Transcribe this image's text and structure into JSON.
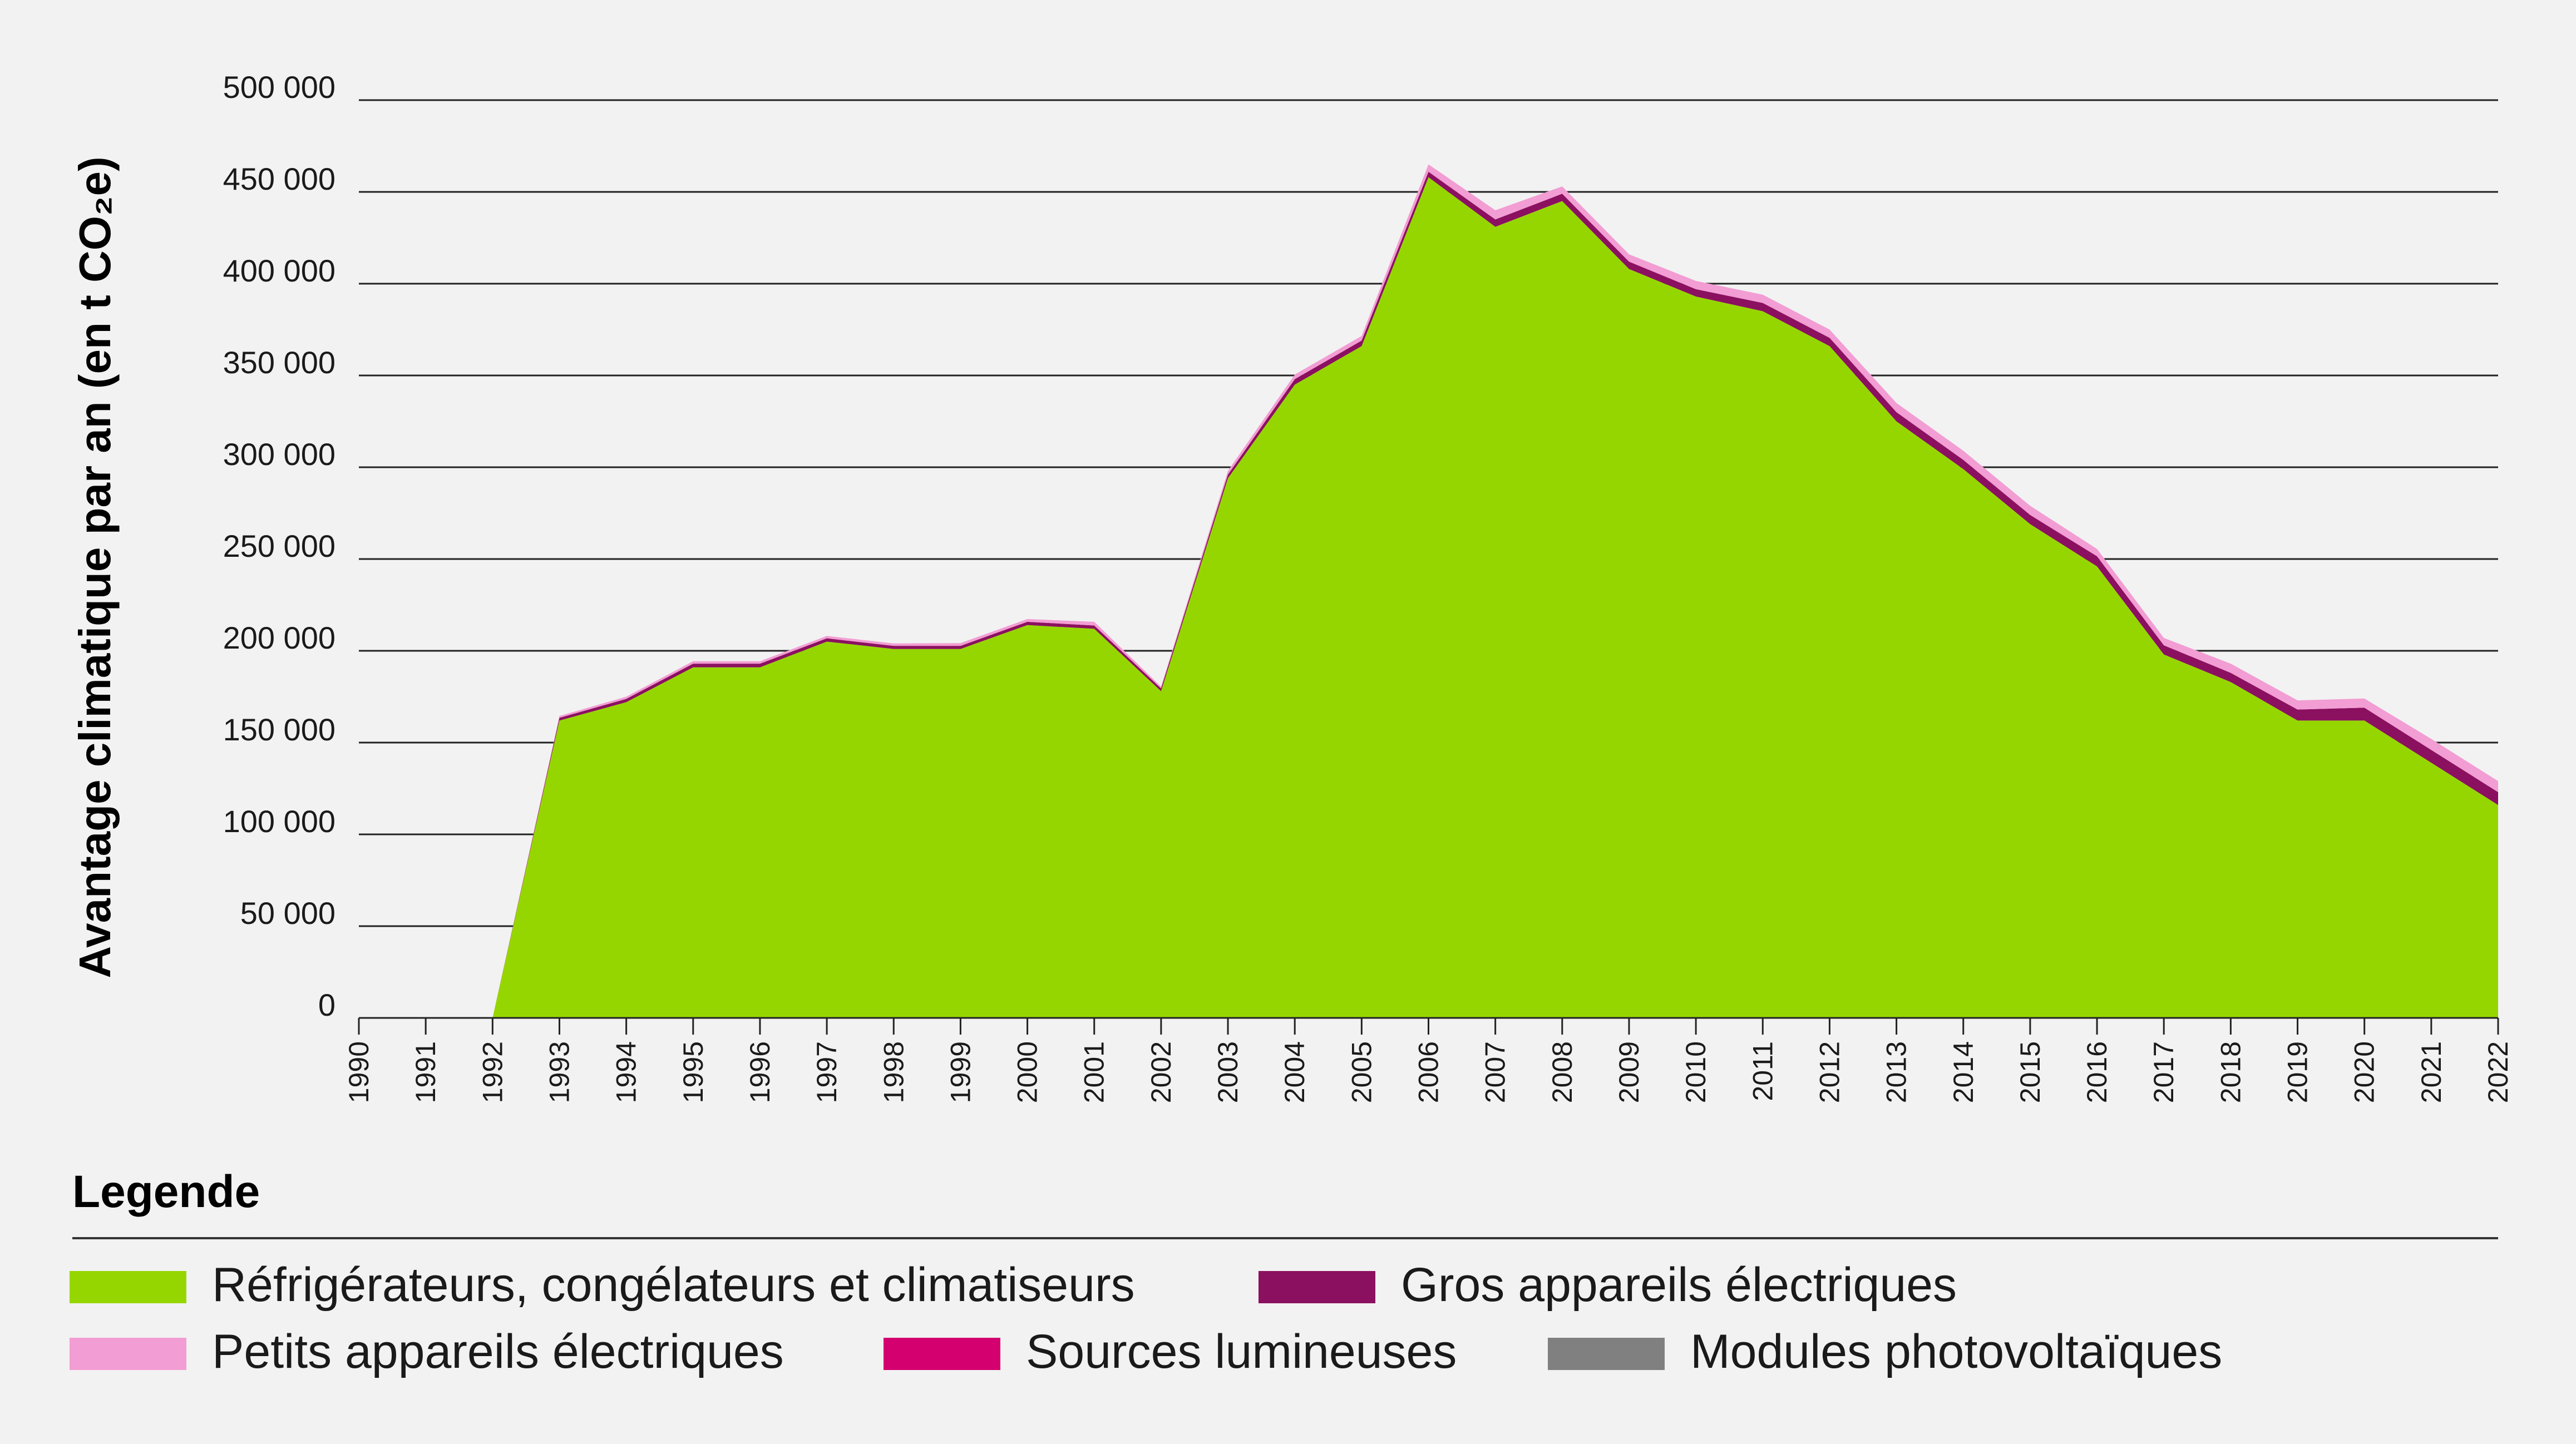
{
  "chart_data": {
    "type": "area",
    "title": "",
    "ylabel": "Avantage climatique par an (en t CO₂e)",
    "ylim": [
      0,
      500000
    ],
    "yticks": [
      {
        "value": 0,
        "label": "0"
      },
      {
        "value": 50000,
        "label": "50 000"
      },
      {
        "value": 100000,
        "label": "100 000"
      },
      {
        "value": 150000,
        "label": "150 000"
      },
      {
        "value": 200000,
        "label": "200 000"
      },
      {
        "value": 250000,
        "label": "250 000"
      },
      {
        "value": 300000,
        "label": "300 000"
      },
      {
        "value": 350000,
        "label": "350 000"
      },
      {
        "value": 400000,
        "label": "400 000"
      },
      {
        "value": 450000,
        "label": "450 000"
      },
      {
        "value": 500000,
        "label": "500 000"
      }
    ],
    "x": [
      "1990",
      "1991",
      "1992",
      "1993",
      "1994",
      "1995",
      "1996",
      "1997",
      "1998",
      "1999",
      "2000",
      "2001",
      "2002",
      "2003",
      "2004",
      "2005",
      "2006",
      "2007",
      "2008",
      "2009",
      "2010",
      "2011",
      "2012",
      "2013",
      "2014",
      "2015",
      "2016",
      "2017",
      "2018",
      "2019",
      "2020",
      "2021",
      "2022"
    ],
    "stacked": true,
    "grid": true,
    "legend_title": "Legende",
    "legend_placement": "bottom",
    "series": [
      {
        "name": "Réfrigérateurs, congélateurs et climatiseurs",
        "color": "#96d600",
        "values": [
          0,
          0,
          0,
          162000,
          172000,
          191000,
          191000,
          205000,
          201000,
          201000,
          214000,
          212000,
          178000,
          294000,
          345000,
          366000,
          458000,
          431000,
          445000,
          408000,
          393000,
          385000,
          366000,
          325000,
          299000,
          269000,
          246000,
          198000,
          183000,
          162000,
          162000,
          139000,
          116000
        ]
      },
      {
        "name": "Gros appareils électriques",
        "color": "#8b1060",
        "values": [
          0,
          0,
          0,
          1500,
          1800,
          2000,
          2000,
          1800,
          1700,
          1700,
          1800,
          1800,
          1500,
          2000,
          3000,
          3000,
          3000,
          4000,
          4000,
          4000,
          4000,
          4500,
          4500,
          5000,
          5000,
          5000,
          5500,
          5000,
          5000,
          6000,
          7000,
          7000,
          7000
        ]
      },
      {
        "name": "Petits appareils électriques",
        "color": "#f29dd3",
        "values": [
          0,
          0,
          0,
          1000,
          1200,
          1300,
          1300,
          1300,
          1300,
          1500,
          1500,
          2000,
          1000,
          2000,
          2500,
          2500,
          4000,
          5000,
          4000,
          4000,
          4500,
          4500,
          4500,
          5000,
          5000,
          5000,
          4000,
          4000,
          5000,
          5000,
          5000,
          6000,
          6000
        ]
      },
      {
        "name": "Sources lumineuses",
        "color": "#d4006f",
        "values": [
          0,
          0,
          0,
          0,
          0,
          0,
          0,
          0,
          0,
          0,
          0,
          0,
          0,
          0,
          0,
          0,
          0,
          0,
          0,
          0,
          0,
          0,
          0,
          0,
          0,
          0,
          0,
          0,
          0,
          0,
          0,
          0,
          0
        ]
      },
      {
        "name": "Modules photovoltaïques",
        "color": "#808080",
        "values": [
          0,
          0,
          0,
          0,
          0,
          0,
          0,
          0,
          0,
          0,
          0,
          0,
          0,
          0,
          0,
          0,
          0,
          0,
          0,
          0,
          0,
          0,
          0,
          0,
          0,
          0,
          0,
          0,
          0,
          0,
          0,
          0,
          0
        ]
      }
    ],
    "legend_order": [
      0,
      1,
      2,
      3,
      4
    ]
  }
}
